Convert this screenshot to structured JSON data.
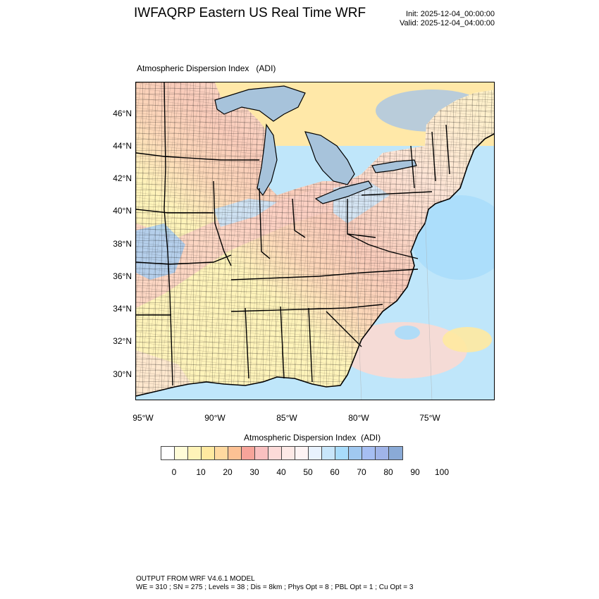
{
  "header": {
    "title": "IWFAQRP Eastern US Real Time WRF",
    "init": "Init: 2025-12-04_00:00:00",
    "valid": "Valid: 2025-12-04_04:00:00"
  },
  "plot": {
    "title": "Atmospheric Dispersion Index   (ADI)",
    "lat_labels": [
      "46°N",
      "44°N",
      "42°N",
      "40°N",
      "38°N",
      "36°N",
      "34°N",
      "32°N",
      "30°N"
    ],
    "lon_labels": [
      "95°W",
      "90°W",
      "85°W",
      "80°W",
      "75°W"
    ]
  },
  "legend": {
    "title": "Atmospheric Dispersion Index  (ADI)",
    "ticks": [
      "0",
      "10",
      "20",
      "30",
      "40",
      "50",
      "60",
      "70",
      "80",
      "90",
      "100"
    ],
    "colors": [
      "#ffffff",
      "#fffcd8",
      "#fff3b8",
      "#ffe9a0",
      "#ffd9a0",
      "#fdc194",
      "#f7a49a",
      "#f9c0c0",
      "#fcdad8",
      "#fde9e6",
      "#fef4f4",
      "#e8f2fe",
      "#c8e6fa",
      "#a8dcfb",
      "#a0c8f0",
      "#a6bef2",
      "#a0b4e8",
      "#8aaad6"
    ]
  },
  "map": {
    "lake_color": "#a7c3db",
    "ocean_color": "#bfe6fa",
    "land_color": "#fff6c8"
  },
  "footer": {
    "line1": "OUTPUT FROM WRF V4.6.1 MODEL",
    "line2": "WE = 310 ; SN = 275 ; Levels = 38 ; Dis = 8km ; Phys Opt = 8 ; PBL Opt = 1 ; Cu Opt = 3"
  }
}
